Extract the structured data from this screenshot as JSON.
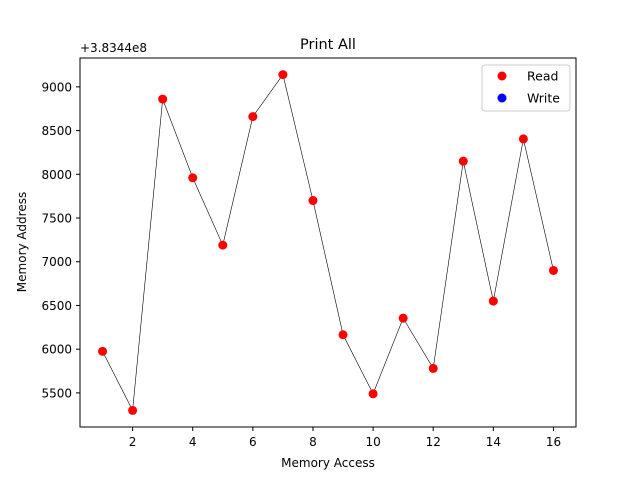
{
  "chart_data": {
    "type": "scatter",
    "title": "Print All",
    "xlabel": "Memory Access",
    "ylabel": "Memory Address",
    "y_offset_label": "+3.8344e8",
    "xlim": [
      0.25,
      16.75
    ],
    "ylim": [
      5110,
      9330
    ],
    "x_ticks": [
      2,
      4,
      6,
      8,
      10,
      12,
      14,
      16
    ],
    "x_tick_labels": [
      "2",
      "4",
      "6",
      "8",
      "10",
      "12",
      "14",
      "16"
    ],
    "y_ticks": [
      5500,
      6000,
      6500,
      7000,
      7500,
      8000,
      8500,
      9000
    ],
    "y_tick_labels": [
      "5500",
      "6000",
      "6500",
      "7000",
      "7500",
      "8000",
      "8500",
      "9000"
    ],
    "grid": false,
    "legend_position": "top-right",
    "connecting_line_color": "#000000",
    "series": [
      {
        "name": "Read",
        "color": "#ff0000",
        "x": [
          1,
          2,
          3,
          4,
          5,
          6,
          7,
          8,
          9,
          10,
          11,
          12,
          13,
          14,
          15,
          16
        ],
        "y": [
          5975,
          5300,
          8860,
          7960,
          7190,
          8660,
          9140,
          7700,
          6165,
          5490,
          6355,
          5780,
          8150,
          6550,
          8405,
          6900
        ]
      },
      {
        "name": "Write",
        "color": "#0000ff",
        "x": [],
        "y": []
      }
    ]
  }
}
